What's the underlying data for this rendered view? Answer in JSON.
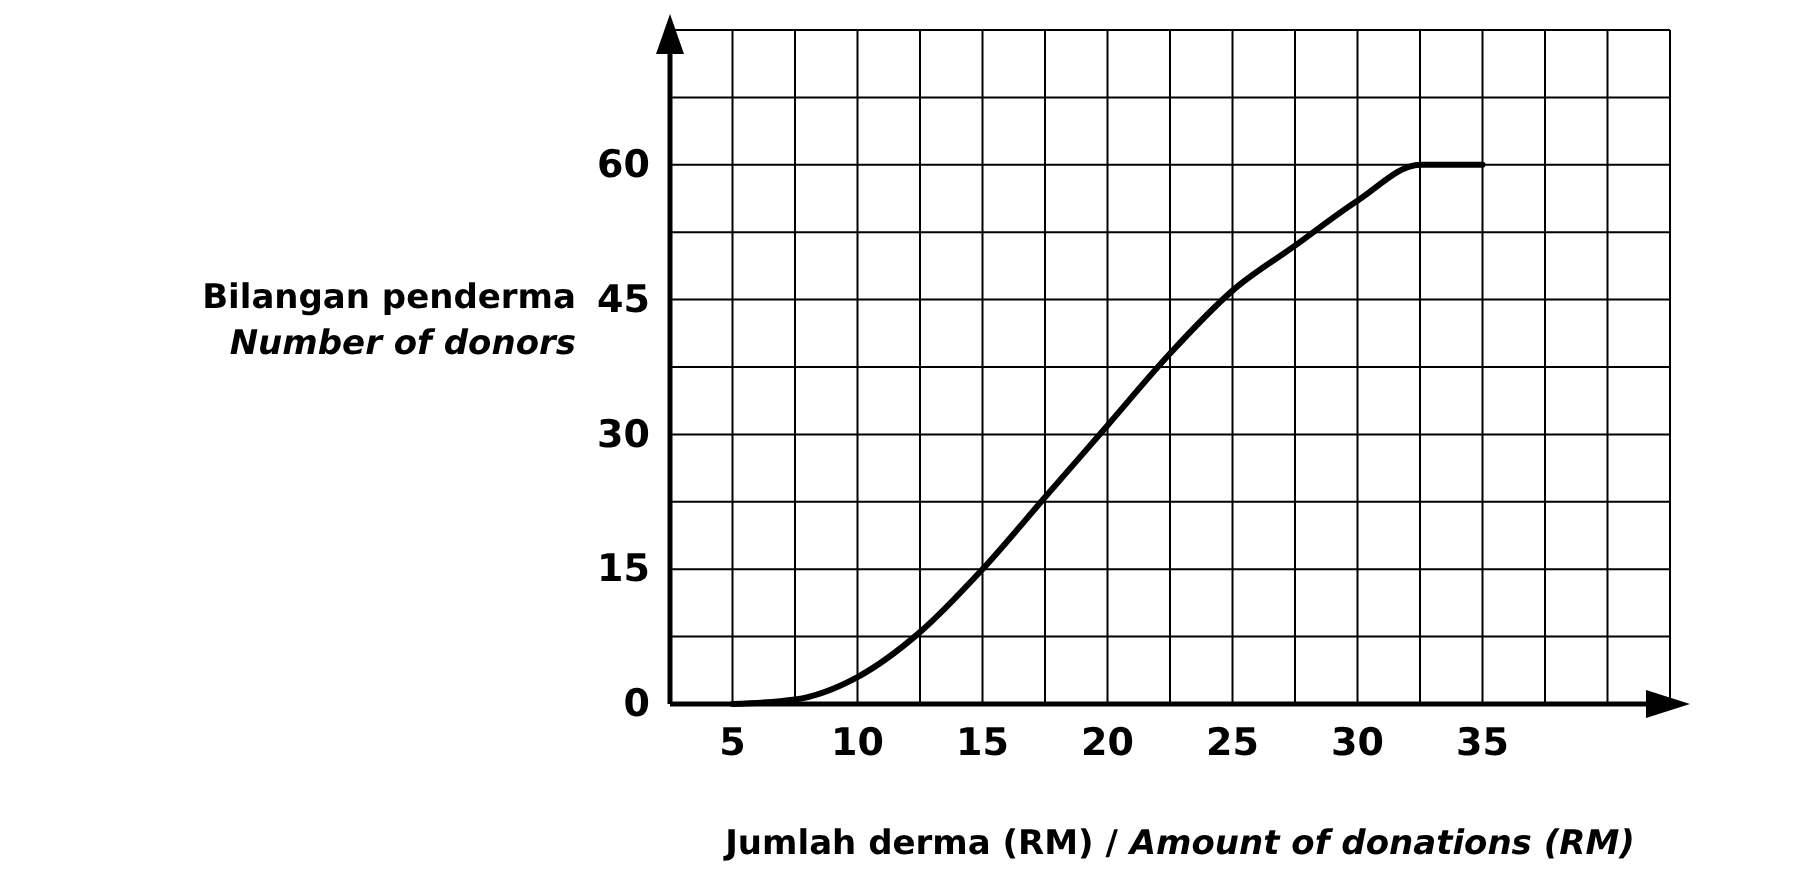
{
  "chart_data": {
    "type": "line",
    "xlabel": "Jumlah derma (RM) / Amount of donations (RM)",
    "ylabel": "Bilangan penderma\nNumber of donors",
    "x": [
      5,
      7.5,
      10,
      12.5,
      15,
      17.5,
      20,
      22.5,
      25,
      27.5,
      30,
      32.5,
      35
    ],
    "series": [
      {
        "color": "#000000",
        "values": [
          0,
          0.5,
          3,
          8,
          15,
          23,
          31,
          39,
          46,
          51,
          56,
          60,
          60
        ]
      }
    ],
    "xlim": [
      2.5,
      42.5
    ],
    "xticks": [
      {
        "value": 2.5,
        "label": null
      },
      5,
      {
        "value": 7.5,
        "label": null
      },
      10,
      {
        "value": 12.5,
        "label": null
      },
      15,
      {
        "value": 17.5,
        "label": null
      },
      20,
      {
        "value": 22.5,
        "label": null
      },
      25,
      {
        "value": 27.5,
        "label": null
      },
      30,
      {
        "value": 32.5,
        "label": null
      },
      35,
      {
        "value": 37.5,
        "label": null
      },
      {
        "value": 40,
        "label": null
      },
      {
        "value": 42.5,
        "label": null
      }
    ],
    "ylim": [
      0,
      75
    ],
    "yticks": [
      0,
      {
        "value": 7.5,
        "label": null
      },
      15,
      {
        "value": 22.5,
        "label": null
      },
      30,
      {
        "value": 37.5,
        "label": null
      },
      45,
      {
        "value": 52.5,
        "label": null
      },
      60,
      {
        "value": 67.5,
        "label": null
      },
      {
        "value": 75,
        "label": null
      }
    ],
    "grid": true,
    "marker": "none",
    "line_style": "solid"
  }
}
